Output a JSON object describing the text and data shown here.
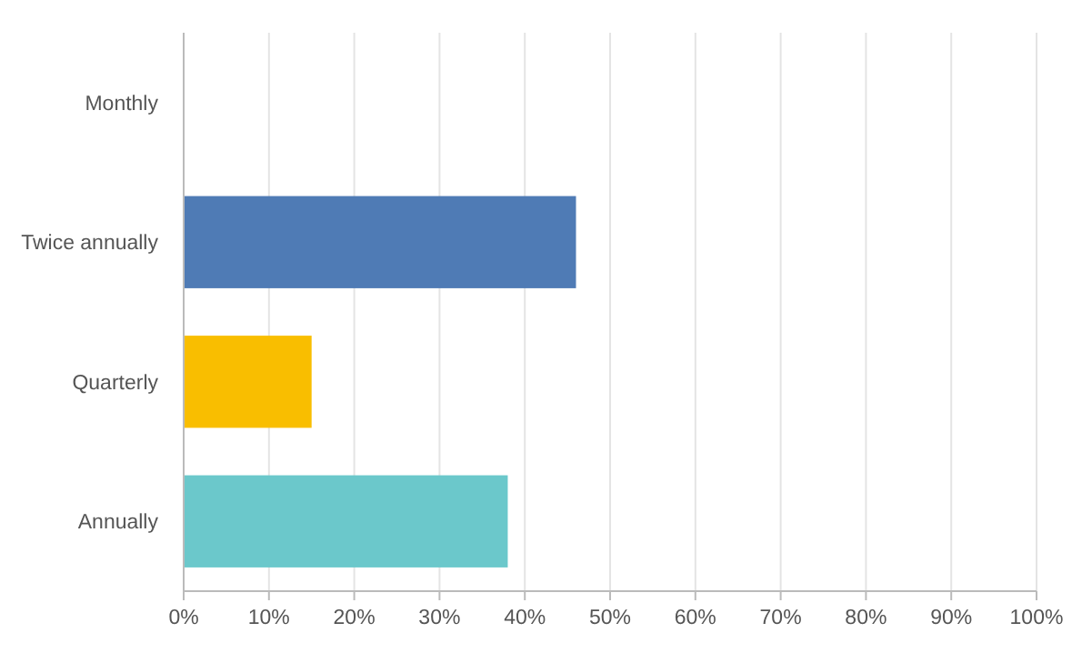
{
  "chart_data": {
    "type": "bar",
    "orientation": "horizontal",
    "categories": [
      "Monthly",
      "Twice annually",
      "Quarterly",
      "Annually"
    ],
    "values": [
      0,
      46,
      15,
      38
    ],
    "colors": [
      "#4f7bb5",
      "#4f7bb5",
      "#f9be00",
      "#6bc8cb"
    ],
    "xlim": [
      0,
      100
    ],
    "xticks": [
      {
        "value": 0,
        "label": "0%"
      },
      {
        "value": 10,
        "label": "10%"
      },
      {
        "value": 20,
        "label": "20%"
      },
      {
        "value": 30,
        "label": "30%"
      },
      {
        "value": 40,
        "label": "40%"
      },
      {
        "value": 50,
        "label": "50%"
      },
      {
        "value": 60,
        "label": "60%"
      },
      {
        "value": 70,
        "label": "70%"
      },
      {
        "value": 80,
        "label": "80%"
      },
      {
        "value": 90,
        "label": "90%"
      },
      {
        "value": 100,
        "label": "100%"
      }
    ],
    "grid": "x"
  }
}
